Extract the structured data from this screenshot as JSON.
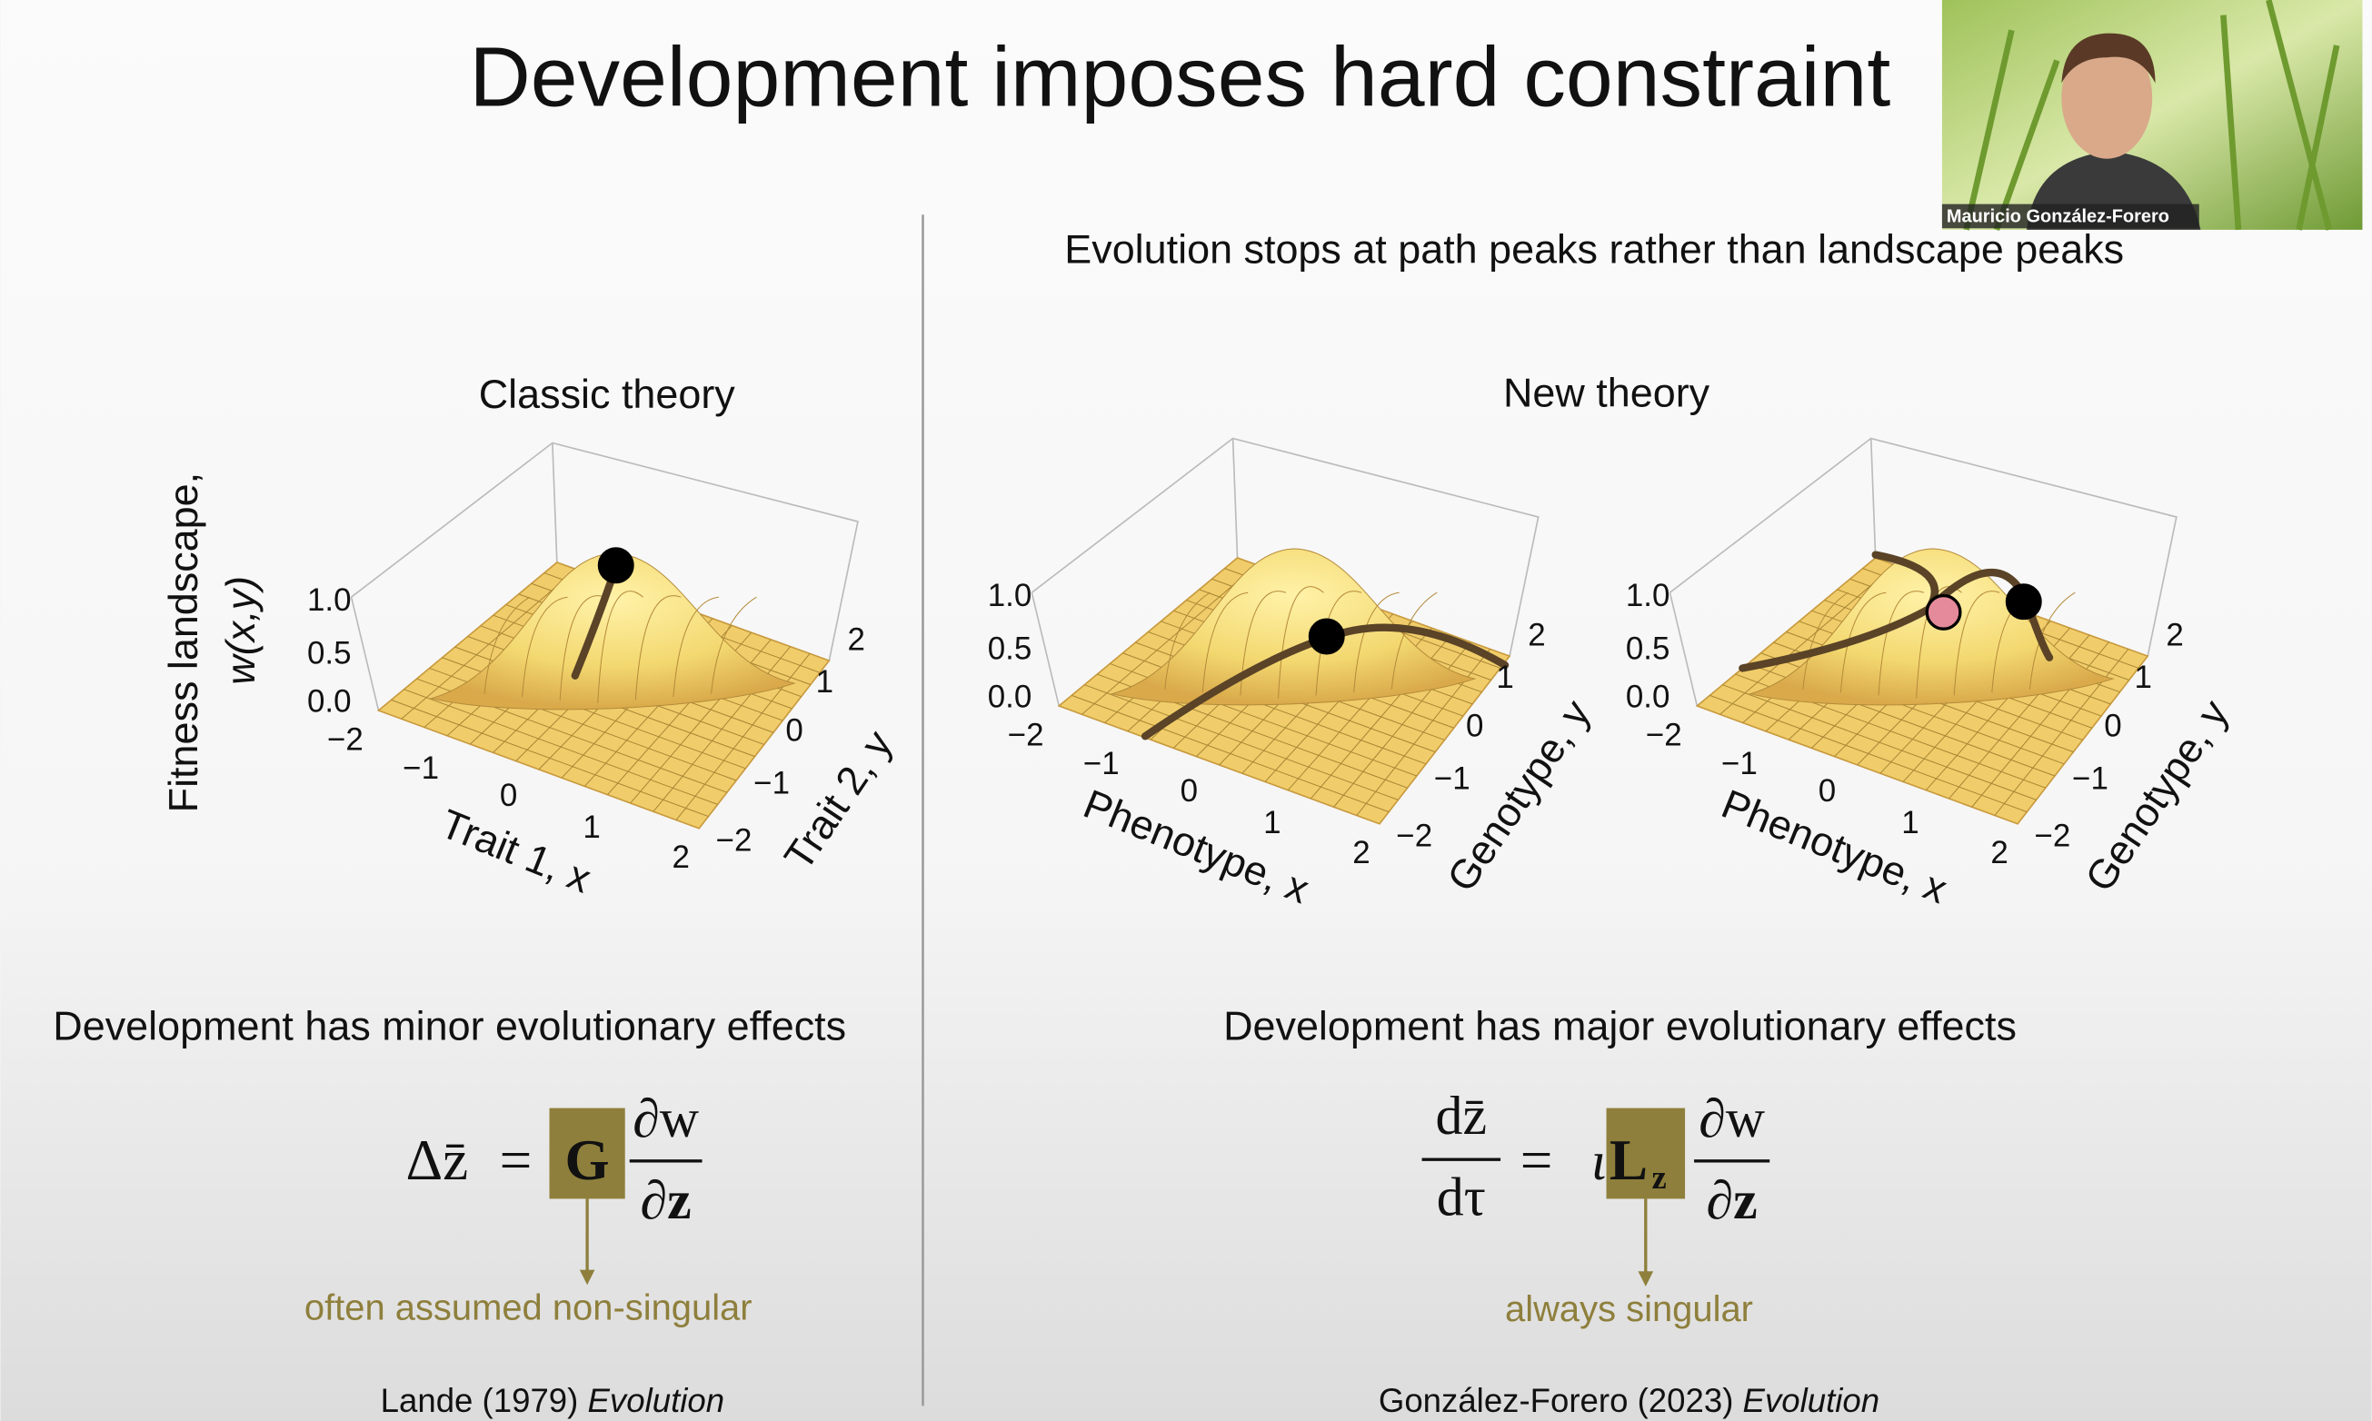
{
  "slide": {
    "title": "Development imposes hard constraint",
    "subtitle": "Evolution stops at path peaks rather than landscape peaks"
  },
  "panels": [
    {
      "heading": "Classic theory",
      "plots": [
        {
          "z_label": [
            "Fitness landscape,",
            "w(x,y)"
          ],
          "z_ticks": [
            "1.0",
            "0.5",
            "0.0"
          ],
          "x_ticks": [
            "−2",
            "−1",
            "0",
            "1",
            "2"
          ],
          "y_ticks": [
            "−2",
            "−1",
            "0",
            "1",
            "2"
          ],
          "x_label": "Trait 1, x",
          "y_label": "Trait 2, y"
        }
      ],
      "conclusion": "Development has minor evolutionary effects",
      "equation": {
        "lhs": "Δz̄",
        "eq": "=",
        "matrix": "G",
        "num": "∂w",
        "den": "∂z"
      },
      "note": "often assumed non-singular",
      "reference": {
        "authors": "Lande (1979)",
        "journal": "Evolution"
      }
    },
    {
      "heading": "New theory",
      "plots": [
        {
          "z_ticks": [
            "1.0",
            "0.5",
            "0.0"
          ],
          "x_ticks": [
            "−2",
            "−1",
            "0",
            "1",
            "2"
          ],
          "y_ticks": [
            "−2",
            "−1",
            "0",
            "1",
            "2"
          ],
          "x_label": "Phenotype, x",
          "y_label": "Genotype, y"
        },
        {
          "z_ticks": [
            "1.0",
            "0.5",
            "0.0"
          ],
          "x_ticks": [
            "−2",
            "−1",
            "0",
            "1",
            "2"
          ],
          "y_ticks": [
            "−2",
            "−1",
            "0",
            "1",
            "2"
          ],
          "x_label": "Phenotype, x",
          "y_label": "Genotype, y"
        }
      ],
      "conclusion": "Development has major evolutionary effects",
      "equation": {
        "lhs_num": "dz̄",
        "lhs_den": "dτ",
        "eq": "=",
        "prefix": "ι",
        "matrix": "L",
        "matrix_sub": "z",
        "num": "∂w",
        "den": "∂z"
      },
      "note": "always singular",
      "reference": {
        "authors": "González-Forero (2023)",
        "journal": "Evolution"
      }
    }
  ],
  "webcam": {
    "name": "Mauricio González-Forero"
  }
}
